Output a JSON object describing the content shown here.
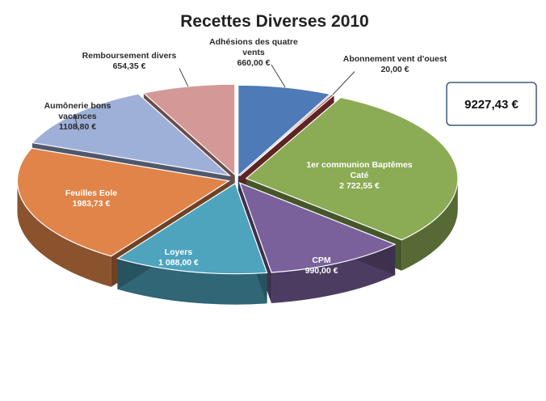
{
  "chart_data": {
    "type": "pie",
    "title": "Recettes Diverses 2010",
    "total_label": "9227,43 €",
    "slices": [
      {
        "name": "Adhésions des quatre vents",
        "value": 660.0,
        "label": "660,00 €",
        "color": "#4f7ab8"
      },
      {
        "name": "Abonnement vent d'ouest",
        "value": 20.0,
        "label": "20,00 €",
        "color": "#b84a47"
      },
      {
        "name": "1er communion Baptêmes Caté",
        "value": 2722.55,
        "label": "2 722,55 €",
        "color": "#8cab55"
      },
      {
        "name": "CPM",
        "value": 990.0,
        "label": "990,00 €",
        "color": "#7a619c"
      },
      {
        "name": "Loyers",
        "value": 1088.0,
        "label": "1 088,00 €",
        "color": "#4ea4bd"
      },
      {
        "name": "Feuilles Eole",
        "value": 1983.73,
        "label": "1983,73 €",
        "color": "#e0844a"
      },
      {
        "name": "Aumônerie bons vacances",
        "value": 1108.8,
        "label": "1108,80 €",
        "color": "#9fb0d8"
      },
      {
        "name": "Remboursement divers",
        "value": 654.35,
        "label": "654,35 €",
        "color": "#d49896"
      }
    ]
  }
}
